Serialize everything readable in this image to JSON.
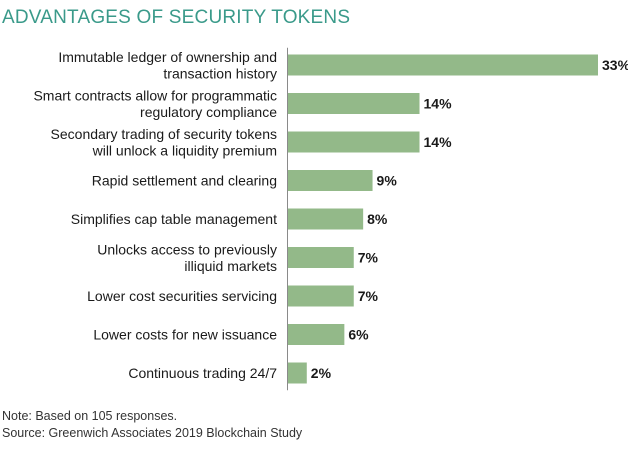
{
  "title": "ADVANTAGES OF SECURITY TOKENS",
  "note": "Note: Based on 105 responses.",
  "source": "Source: Greenwich Associates 2019 Blockchain Study",
  "colors": {
    "title": "#3a9a8a",
    "bar": "#93b989",
    "axis": "#8a8a8a"
  },
  "chart_data": {
    "type": "bar",
    "orientation": "horizontal",
    "categories": [
      [
        "Immutable ledger of ownership and",
        "transaction history"
      ],
      [
        "Smart contracts allow for programmatic",
        "regulatory compliance"
      ],
      [
        "Secondary trading of security tokens",
        "will unlock a liquidity premium"
      ],
      [
        "Rapid settlement and clearing"
      ],
      [
        "Simplifies cap table management"
      ],
      [
        "Unlocks access to previously",
        "illiquid markets"
      ],
      [
        "Lower cost securities servicing"
      ],
      [
        "Lower costs for new issuance"
      ],
      [
        "Continuous trading 24/7"
      ]
    ],
    "values": [
      33,
      14,
      14,
      9,
      8,
      7,
      7,
      6,
      2
    ],
    "value_labels": [
      "33%",
      "14%",
      "14%",
      "9%",
      "8%",
      "7%",
      "7%",
      "6%",
      "2%"
    ],
    "xlim": [
      0,
      33
    ],
    "grid": false,
    "legend": "none"
  }
}
